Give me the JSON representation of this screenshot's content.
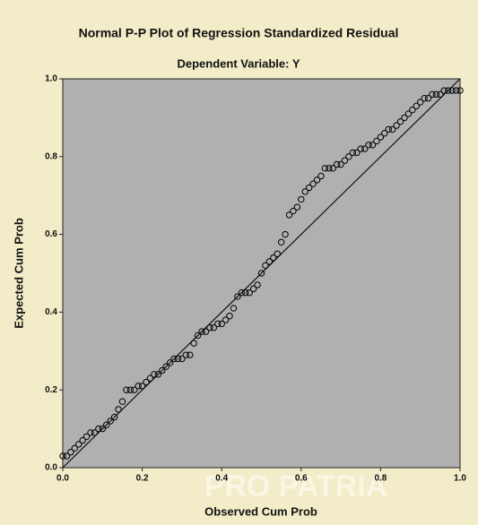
{
  "chart_data": {
    "type": "scatter",
    "title": "Normal P-P Plot of Regression Standardized Residual",
    "subtitle": "Dependent Variable: Y",
    "x_label": "Observed Cum Prob",
    "y_label": "Expected Cum Prob",
    "watermark": "PRO PATRIA",
    "color": "#000000",
    "x": [
      0.0,
      0.01,
      0.02,
      0.03,
      0.04,
      0.05,
      0.06,
      0.07,
      0.08,
      0.09,
      0.1,
      0.11,
      0.12,
      0.13,
      0.14,
      0.15,
      0.16,
      0.17,
      0.18,
      0.19,
      0.2,
      0.21,
      0.22,
      0.23,
      0.24,
      0.25,
      0.26,
      0.27,
      0.28,
      0.29,
      0.3,
      0.31,
      0.32,
      0.33,
      0.34,
      0.35,
      0.36,
      0.37,
      0.38,
      0.39,
      0.4,
      0.41,
      0.42,
      0.43,
      0.44,
      0.45,
      0.46,
      0.47,
      0.48,
      0.49,
      0.5,
      0.51,
      0.52,
      0.53,
      0.54,
      0.55,
      0.56,
      0.57,
      0.58,
      0.59,
      0.6,
      0.61,
      0.62,
      0.63,
      0.64,
      0.65,
      0.66,
      0.67,
      0.68,
      0.69,
      0.7,
      0.71,
      0.72,
      0.73,
      0.74,
      0.75,
      0.76,
      0.77,
      0.78,
      0.79,
      0.8,
      0.81,
      0.82,
      0.83,
      0.84,
      0.85,
      0.86,
      0.87,
      0.88,
      0.89,
      0.9,
      0.91,
      0.92,
      0.93,
      0.94,
      0.95,
      0.96,
      0.97,
      0.98,
      0.99,
      1.0
    ],
    "values": [
      0.03,
      0.03,
      0.04,
      0.05,
      0.06,
      0.07,
      0.08,
      0.09,
      0.09,
      0.1,
      0.1,
      0.11,
      0.12,
      0.13,
      0.15,
      0.17,
      0.2,
      0.2,
      0.2,
      0.21,
      0.21,
      0.22,
      0.23,
      0.24,
      0.24,
      0.25,
      0.26,
      0.27,
      0.28,
      0.28,
      0.28,
      0.29,
      0.29,
      0.32,
      0.34,
      0.35,
      0.35,
      0.36,
      0.36,
      0.37,
      0.37,
      0.38,
      0.39,
      0.41,
      0.44,
      0.45,
      0.45,
      0.45,
      0.46,
      0.47,
      0.5,
      0.52,
      0.53,
      0.54,
      0.55,
      0.58,
      0.6,
      0.65,
      0.66,
      0.67,
      0.69,
      0.71,
      0.72,
      0.73,
      0.74,
      0.75,
      0.77,
      0.77,
      0.77,
      0.78,
      0.78,
      0.79,
      0.8,
      0.81,
      0.81,
      0.82,
      0.82,
      0.83,
      0.83,
      0.84,
      0.85,
      0.86,
      0.87,
      0.87,
      0.88,
      0.89,
      0.9,
      0.91,
      0.92,
      0.93,
      0.94,
      0.95,
      0.95,
      0.96,
      0.96,
      0.96,
      0.97,
      0.97,
      0.97,
      0.97,
      0.97
    ],
    "xlim": [
      0,
      1
    ],
    "ylim": [
      0,
      1
    ],
    "xticks": [
      {
        "value": 0,
        "label": "0.0"
      },
      {
        "value": 0.2,
        "label": "0.2"
      },
      {
        "value": 0.4,
        "label": "0.4"
      },
      {
        "value": 0.6,
        "label": "0.6"
      },
      {
        "value": 0.8,
        "label": "0.8"
      },
      {
        "value": 1,
        "label": "1.0"
      }
    ],
    "yticks": [
      {
        "value": 0,
        "label": "0.0"
      },
      {
        "value": 0.2,
        "label": "0.2"
      },
      {
        "value": 0.4,
        "label": "0.4"
      },
      {
        "value": 0.6,
        "label": "0.6"
      },
      {
        "value": 0.8,
        "label": "0.8"
      },
      {
        "value": 1,
        "label": "1.0"
      }
    ]
  }
}
